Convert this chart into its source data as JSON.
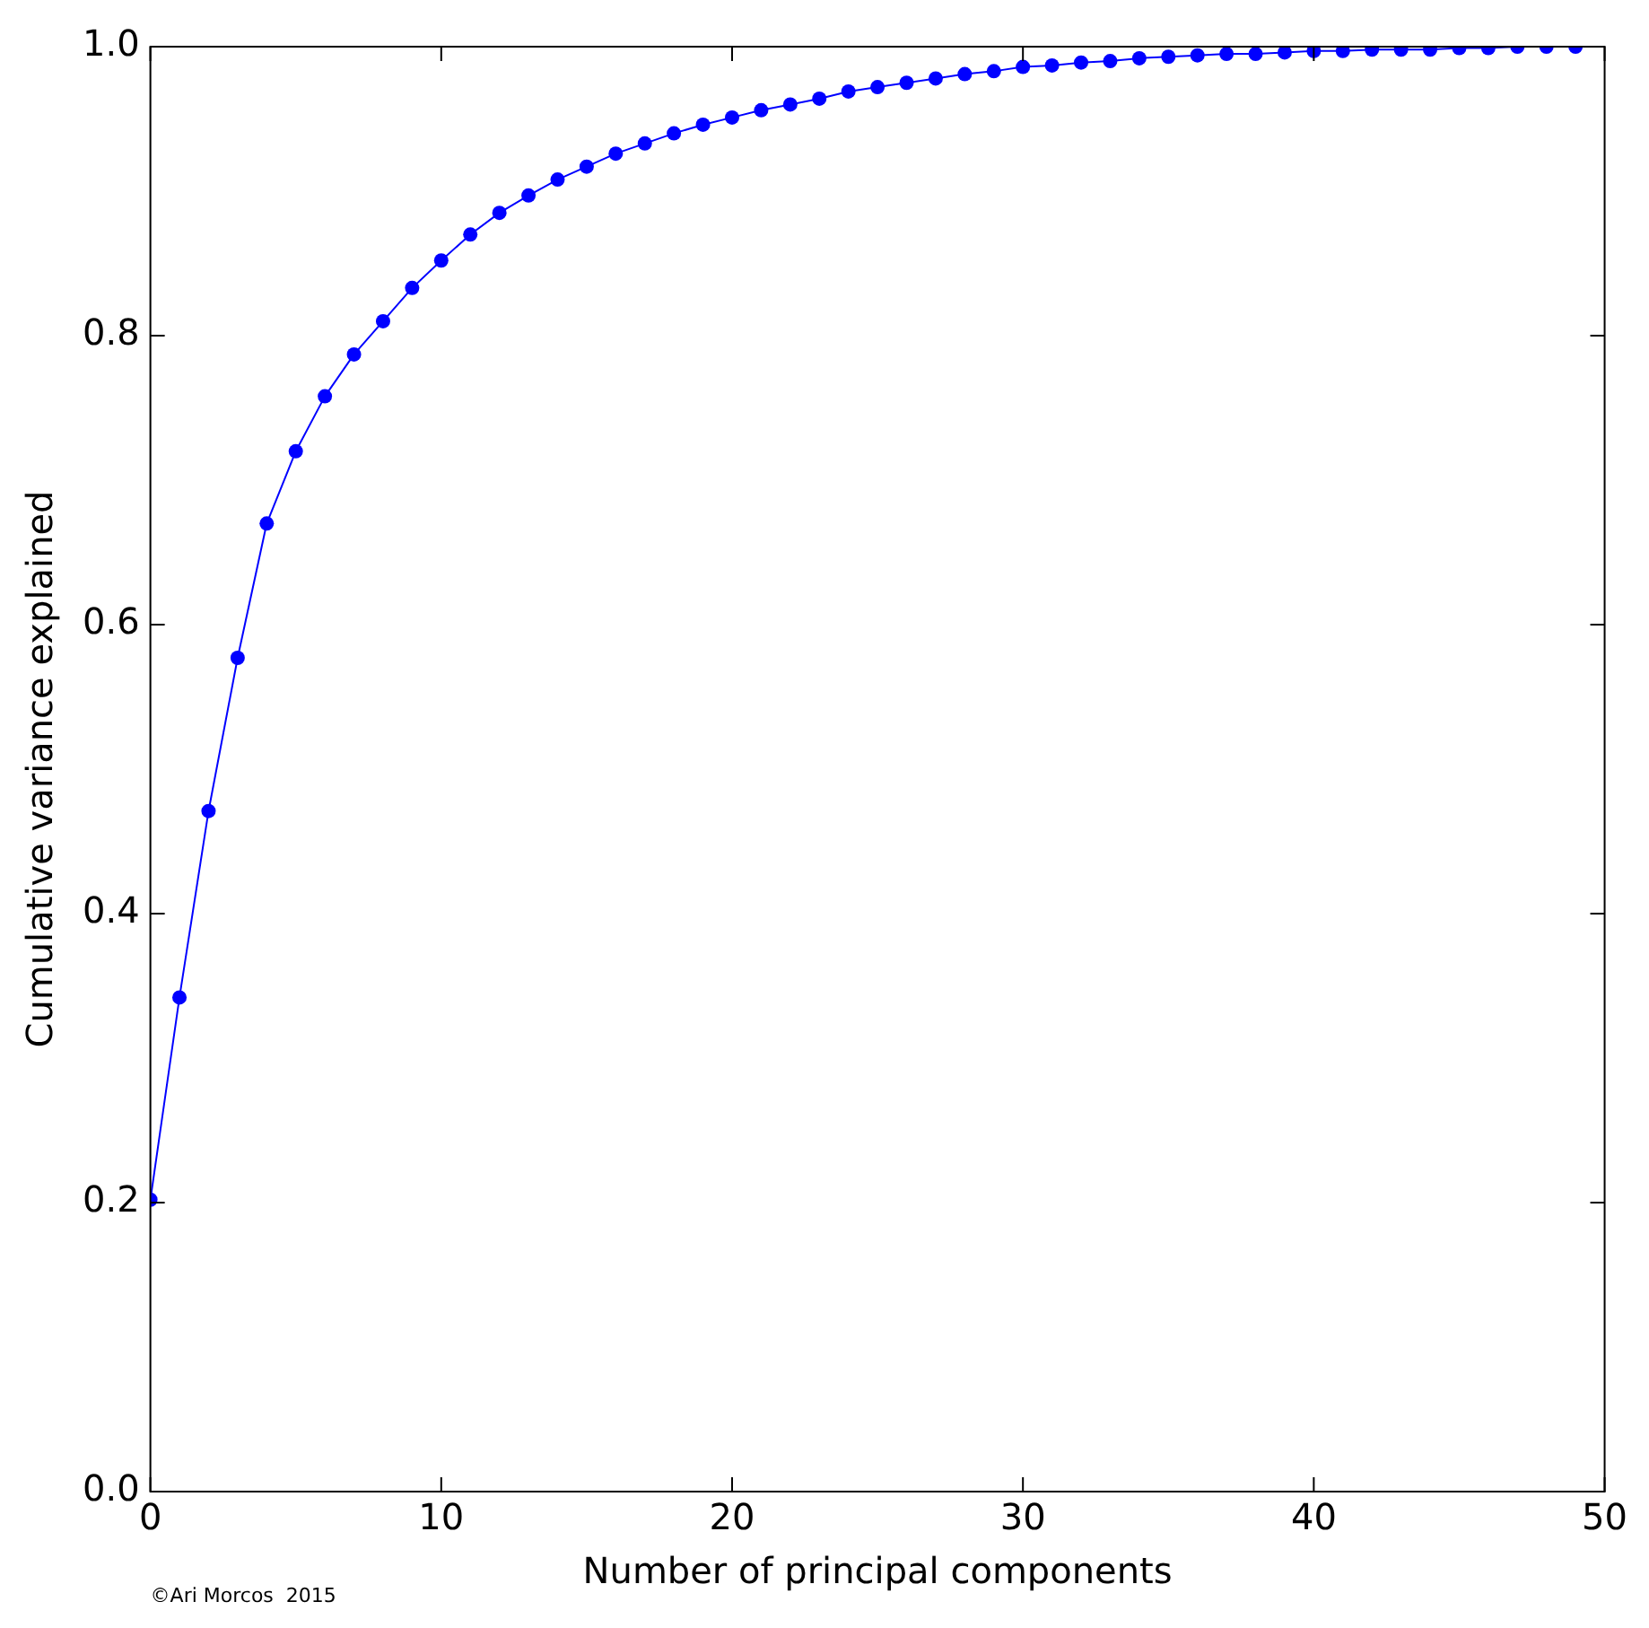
{
  "chart_data": {
    "type": "line",
    "xlabel": "Number of principal components",
    "ylabel": "Cumulative variance explained",
    "x": [
      0,
      1,
      2,
      3,
      4,
      5,
      6,
      7,
      8,
      9,
      10,
      11,
      12,
      13,
      14,
      15,
      16,
      17,
      18,
      19,
      20,
      21,
      22,
      23,
      24,
      25,
      26,
      27,
      28,
      29,
      30,
      31,
      32,
      33,
      34,
      35,
      36,
      37,
      38,
      39,
      40,
      41,
      42,
      43,
      44,
      45,
      46,
      47,
      48,
      49
    ],
    "series": [
      {
        "color": "#0000ff",
        "values": [
          0.202,
          0.342,
          0.471,
          0.577,
          0.67,
          0.72,
          0.758,
          0.787,
          0.81,
          0.833,
          0.852,
          0.87,
          0.885,
          0.897,
          0.908,
          0.917,
          0.926,
          0.933,
          0.94,
          0.946,
          0.951,
          0.956,
          0.96,
          0.964,
          0.969,
          0.972,
          0.975,
          0.978,
          0.981,
          0.983,
          0.986,
          0.987,
          0.989,
          0.99,
          0.992,
          0.993,
          0.994,
          0.995,
          0.995,
          0.996,
          0.997,
          0.997,
          0.998,
          0.998,
          0.998,
          0.999,
          0.999,
          1.0,
          1.0,
          1.0
        ]
      }
    ],
    "xlim": [
      0,
      50
    ],
    "xticks": [
      0,
      10,
      20,
      30,
      40,
      50
    ],
    "ylim": [
      0,
      1
    ],
    "yticks": [
      {
        "value": 0,
        "label": "0.0"
      },
      {
        "value": 0.2,
        "label": "0.2"
      },
      {
        "value": 0.4,
        "label": "0.4"
      },
      {
        "value": 0.6,
        "label": "0.6"
      },
      {
        "value": 0.8,
        "label": "0.8"
      },
      {
        "value": 1,
        "label": "1.0"
      }
    ],
    "marker": "circle",
    "line_style": "solid",
    "legend": false,
    "grid": false,
    "annotations": [
      "©Ari Morcos  2015"
    ]
  }
}
